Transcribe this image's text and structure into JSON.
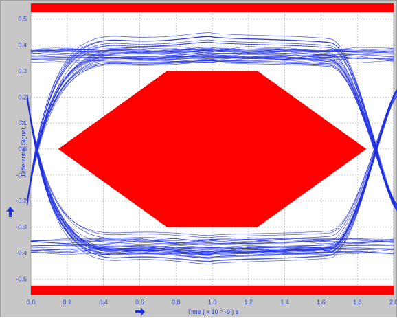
{
  "chart_data": {
    "type": "line",
    "title": "",
    "xlabel": "Time  ( x 10 ^ -9 ) s",
    "ylabel": "Differential Signal, V",
    "xlim": [
      0.0,
      2.0
    ],
    "ylim": [
      -0.56,
      0.56
    ],
    "x_ticks": [
      "0.0",
      "0.2",
      "0.4",
      "0.6",
      "0.8",
      "1.0",
      "1.2",
      "1.4",
      "1.6",
      "1.8",
      "2.0"
    ],
    "y_ticks": [
      "0.5",
      "0.4",
      "0.3",
      "0.2",
      "0.1",
      "0.0",
      "-0.1",
      "-0.2",
      "-0.3",
      "-0.4",
      "-0.5"
    ],
    "x_tick_values": [
      0.0,
      0.2,
      0.4,
      0.6,
      0.8,
      1.0,
      1.2,
      1.4,
      1.6,
      1.8,
      2.0
    ],
    "y_tick_values": [
      0.5,
      0.4,
      0.3,
      0.2,
      0.1,
      0.0,
      -0.1,
      -0.2,
      -0.3,
      -0.4,
      -0.5
    ],
    "grid": true,
    "mask": {
      "top_band": [
        0.525,
        0.56
      ],
      "bottom_band": [
        -0.56,
        -0.525
      ],
      "center_polygon": [
        [
          0.15,
          0.0
        ],
        [
          0.75,
          0.3
        ],
        [
          1.25,
          0.3
        ],
        [
          1.85,
          0.0
        ],
        [
          1.25,
          -0.3
        ],
        [
          0.75,
          -0.3
        ]
      ]
    },
    "eye_diagram": {
      "high_level": 0.36,
      "low_level": -0.375,
      "overshoot_high": 0.44,
      "overshoot_low": -0.45,
      "crossing_times": [
        0.0,
        2.0
      ]
    },
    "colors": {
      "traces": "#1f2fe0",
      "mask": "#ff0000",
      "text": "#2b3fd1",
      "panel": "#c7c7c7"
    }
  },
  "icons": {
    "x_axis_arrow": "right-arrow-icon",
    "y_axis_arrow": "up-arrow-icon"
  }
}
